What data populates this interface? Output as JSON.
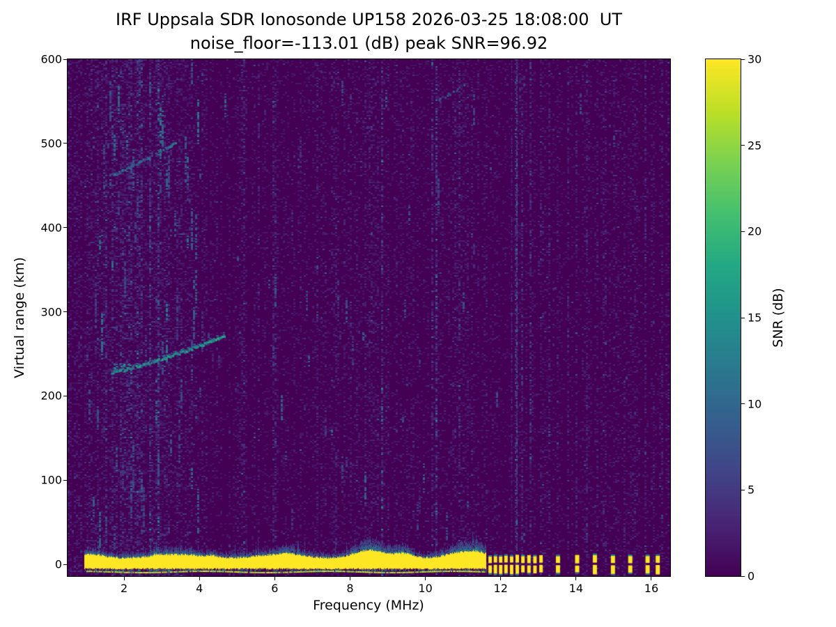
{
  "figure": {
    "title_line1": "IRF Uppsala SDR Ionosonde UP158 2026-03-25 18:08:00  UT",
    "title_line2": "noise_floor=-113.01 (dB) peak SNR=96.92",
    "station": "UP158",
    "timestamp_ut": "2026-03-25 18:08:00"
  },
  "chart_data": {
    "type": "heatmap",
    "title": "IRF Uppsala SDR Ionosonde UP158 2026-03-25 18:08:00  UT",
    "subtitle": "noise_floor=-113.01 (dB) peak SNR=96.92",
    "xlabel": "Frequency (MHz)",
    "ylabel": "Virtual range (km)",
    "colorbar_label": "SNR (dB)",
    "colormap": "viridis",
    "xlim": [
      0.5,
      16.5
    ],
    "ylim": [
      -14,
      600
    ],
    "clim": [
      0,
      30
    ],
    "xticks": [
      2,
      4,
      6,
      8,
      10,
      12,
      14,
      16
    ],
    "yticks": [
      0,
      100,
      200,
      300,
      400,
      500,
      600
    ],
    "colorbar_ticks": [
      0,
      5,
      10,
      15,
      20,
      25,
      30
    ],
    "noise_floor_db": -113.01,
    "peak_snr_db": 96.92,
    "features": {
      "ground_pulse_band": {
        "freq_start_mhz": 0.95,
        "freq_end_mhz": 11.62,
        "top_km": 10,
        "bottom_km": -4.5,
        "snr_db": 30,
        "enhanced_bumps_mhz": [
          8.45,
          9.45,
          10.9,
          11.35
        ]
      },
      "secondary_echo_line_km": -8.2,
      "pulse_dashes_mhz": [
        11.72,
        11.86,
        12.0,
        12.14,
        12.29,
        12.44,
        12.59,
        12.75,
        12.91,
        13.07,
        13.52,
        14.03,
        14.5,
        14.98,
        15.44,
        15.9,
        16.17
      ],
      "rfi_lines": {
        "strong_mhz": 12.43,
        "periodic_start_mhz": 12.3,
        "periodic_spacing_mhz": 0.25,
        "periodic_end_mhz": 16.3
      },
      "echo_traces": [
        {
          "name": "first-hop",
          "freq_start_mhz": 1.65,
          "freq_end_mhz": 4.65,
          "range_start_km": 228,
          "range_end_km": 272,
          "snr_db": 15
        },
        {
          "name": "second-hop",
          "freq_start_mhz": 1.7,
          "freq_end_mhz": 3.35,
          "range_start_km": 462,
          "range_end_km": 500,
          "snr_db": 10
        },
        {
          "name": "faint-upper",
          "freq_start_mhz": 10.35,
          "freq_end_mhz": 11.05,
          "range_start_km": 552,
          "range_end_km": 570,
          "snr_db": 7
        }
      ],
      "noise_speckle": {
        "background_snr_db": 0,
        "max_speckle_db": 15,
        "enhanced_band_mhz": [
          1.0,
          4.0
        ]
      }
    }
  }
}
